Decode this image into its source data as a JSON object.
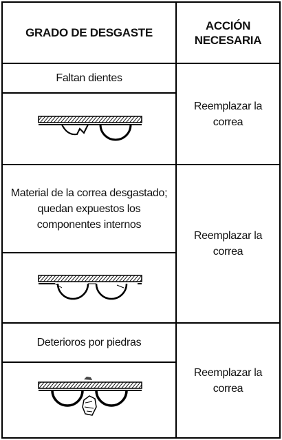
{
  "header": {
    "columns": [
      "GRADO DE DESGASTE",
      "ACCIÓN NECESARIA"
    ]
  },
  "table": {
    "rows": [
      {
        "condition": "Faltan dientes",
        "action": "Reemplazar la correa"
      },
      {
        "condition": "Material de la correa desgastado; quedan expuestos los componentes internos",
        "action": "Reemplazar la correa"
      },
      {
        "condition": "Deterioros por piedras",
        "action": "Reemplazar la correa"
      }
    ]
  }
}
